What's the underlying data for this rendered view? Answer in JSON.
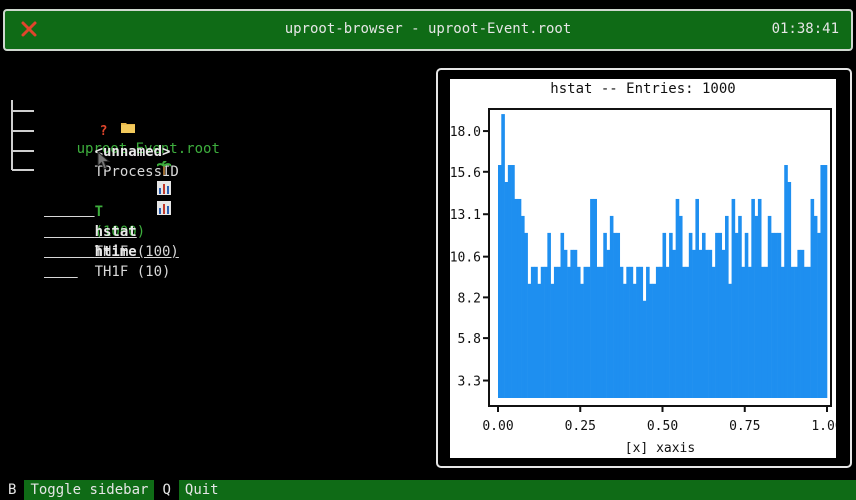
{
  "header": {
    "title": "uproot-browser - uproot-Event.root",
    "clock": "01:38:41",
    "close_icon": "close-x-icon",
    "close_color": "#e0452c"
  },
  "tree": {
    "root": {
      "icon": "folder-icon",
      "label": "uproot-Event.root"
    },
    "items": [
      {
        "icon": "question-icon",
        "name": "<unnamed>",
        "type": "TProcessID"
      },
      {
        "icon": "palm-tree-icon",
        "name": "T",
        "type": "(1000)"
      },
      {
        "icon": "bar-chart-icon",
        "name": "hstat",
        "type": "TH1F (100)"
      },
      {
        "icon": "bar-chart-icon",
        "name": "htime",
        "type": "TH1F (10)"
      }
    ]
  },
  "plot": {
    "title": "hstat -- Entries: 1000",
    "bar_color": "#1e8ff0"
  },
  "chart_data": {
    "type": "bar",
    "title": "hstat -- Entries: 1000",
    "xlabel": "[x] xaxis",
    "ylabel": "",
    "xlim": [
      0,
      1
    ],
    "ylim": [
      1.8,
      19.3
    ],
    "xticks": [
      "0.00",
      "0.25",
      "0.50",
      "0.75",
      "1.00"
    ],
    "yticks": [
      "3.3",
      "5.8",
      "8.2",
      "10.6",
      "13.1",
      "15.6",
      "18.0"
    ],
    "bins": 100,
    "values": [
      16.0,
      19.0,
      15.0,
      16.0,
      16.0,
      14.0,
      14.0,
      13.0,
      12.0,
      9.0,
      10.0,
      10.0,
      9.0,
      10.0,
      10.0,
      12.0,
      9.0,
      10.0,
      10.0,
      12.0,
      11.0,
      10.0,
      11.0,
      11.0,
      10.0,
      9.0,
      10.0,
      10.0,
      14.0,
      14.0,
      10.0,
      10.0,
      12.0,
      11.0,
      13.0,
      12.0,
      12.0,
      10.0,
      9.0,
      10.0,
      10.0,
      9.0,
      10.0,
      10.0,
      8.0,
      10.0,
      9.0,
      9.0,
      10.0,
      10.0,
      12.0,
      10.0,
      12.0,
      11.0,
      14.0,
      13.0,
      10.0,
      10.0,
      12.0,
      11.0,
      14.0,
      11.0,
      12.0,
      11.0,
      11.0,
      10.0,
      12.0,
      12.0,
      11.0,
      13.0,
      9.0,
      14.0,
      12.0,
      13.0,
      10.0,
      12.0,
      10.0,
      14.0,
      13.0,
      14.0,
      10.0,
      10.0,
      13.0,
      12.0,
      12.0,
      12.0,
      10.0,
      16.0,
      15.0,
      10.0,
      10.0,
      11.0,
      11.0,
      10.0,
      10.0,
      14.0,
      13.0,
      12.0,
      16.0,
      16.0
    ]
  },
  "footer": {
    "keys": [
      {
        "key": "B",
        "label": "Toggle sidebar"
      },
      {
        "key": "Q",
        "label": "Quit"
      }
    ]
  }
}
